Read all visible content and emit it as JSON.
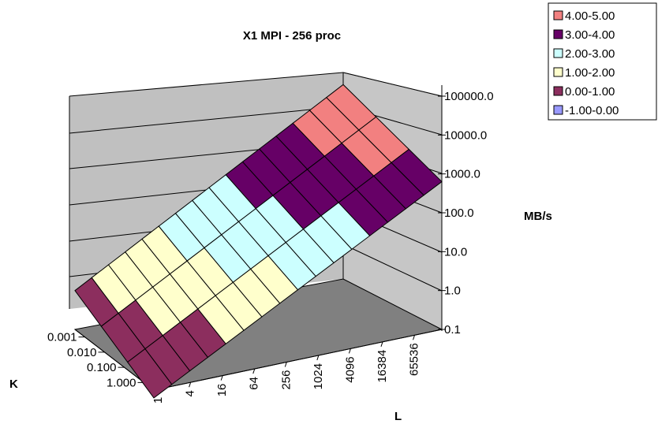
{
  "chart_data": {
    "type": "surface",
    "title": "X1 MPI - 256 proc",
    "xlabel": "L",
    "ylabel": "K",
    "zlabel": "MB/s",
    "z_scale": "log",
    "x_ticks": [
      "1",
      "4",
      "16",
      "64",
      "256",
      "1024",
      "4096",
      "16384",
      "65536"
    ],
    "y_ticks": [
      "0.001",
      "0.010",
      "0.100",
      "1.000"
    ],
    "z_ticks": [
      "0.1",
      "1.0",
      "10.0",
      "100.0",
      "1000.0",
      "10000.0",
      "100000.0"
    ],
    "legend": [
      {
        "label": "4.00-5.00",
        "color": "#f28080"
      },
      {
        "label": "3.00-4.00",
        "color": "#660066"
      },
      {
        "label": "2.00-3.00",
        "color": "#ccffff"
      },
      {
        "label": "1.00-2.00",
        "color": "#ffffcc"
      },
      {
        "label": "0.00-1.00",
        "color": "#8c2e5e"
      },
      {
        "label": "-1.00-0.00",
        "color": "#9999ff"
      }
    ],
    "legend_position": "top-right",
    "grid": true,
    "surface_log10": [
      [
        0.0,
        0.25,
        0.5,
        0.75,
        1.0,
        1.25,
        1.5,
        1.75,
        2.0,
        2.25,
        2.5,
        2.75,
        3.0,
        3.25,
        3.5,
        3.75,
        4.0
      ],
      [
        -0.4,
        -0.15,
        0.1,
        0.35,
        0.6,
        0.85,
        1.1,
        1.35,
        1.6,
        1.85,
        2.1,
        2.35,
        2.6,
        2.85,
        3.1,
        3.35,
        3.6
      ],
      [
        -0.8,
        -0.55,
        -0.3,
        -0.05,
        0.2,
        0.45,
        0.7,
        0.95,
        1.2,
        1.45,
        1.7,
        1.95,
        2.2,
        2.45,
        2.7,
        2.95,
        3.2
      ],
      [
        -1.2,
        -0.95,
        -0.7,
        -0.45,
        -0.2,
        0.05,
        0.3,
        0.55,
        0.8,
        1.05,
        1.3,
        1.55,
        1.8,
        2.05,
        2.3,
        2.55,
        2.8
      ]
    ]
  },
  "legend_swatch_border": "#000000",
  "wall_color": "#c0c0c0",
  "floor_color": "#808080"
}
